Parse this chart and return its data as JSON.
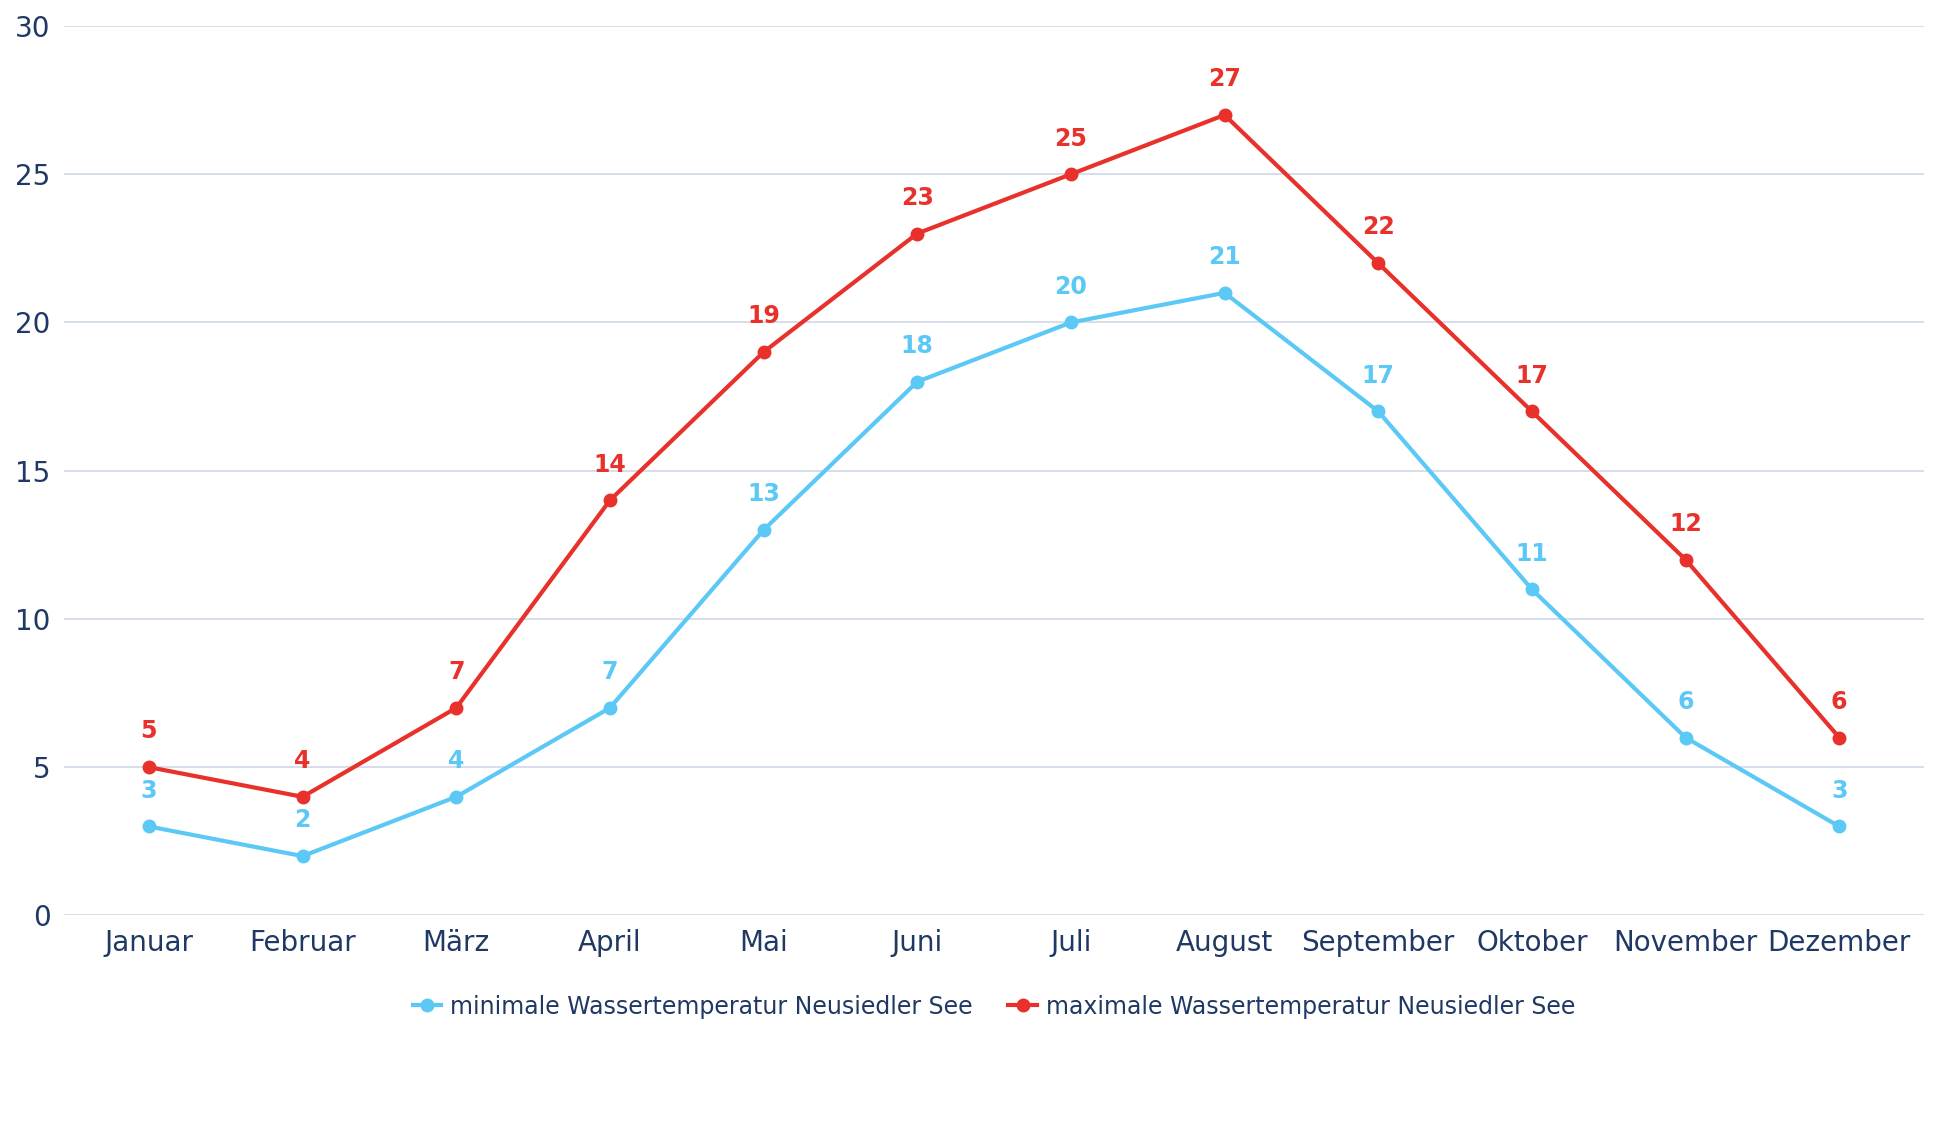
{
  "months": [
    "Januar",
    "Februar",
    "März",
    "April",
    "Mai",
    "Juni",
    "Juli",
    "August",
    "September",
    "Oktober",
    "November",
    "Dezember"
  ],
  "min_temps": [
    3,
    2,
    4,
    7,
    13,
    18,
    20,
    21,
    17,
    11,
    6,
    3
  ],
  "max_temps": [
    5,
    4,
    7,
    14,
    19,
    23,
    25,
    27,
    22,
    17,
    12,
    6
  ],
  "min_color": "#5bc8f5",
  "max_color": "#e8312a",
  "axis_text_color": "#1f3864",
  "legend_label_min": "minimale Wassertemperatur Neusiedler See",
  "legend_label_max": "maximale Wassertemperatur Neusiedler See",
  "ylim": [
    0,
    30
  ],
  "yticks": [
    0,
    5,
    10,
    15,
    20,
    25,
    30
  ],
  "line_width": 3.0,
  "marker_size": 9,
  "background_color": "#ffffff",
  "grid_color": "#d0d8e8",
  "tick_fontsize": 20,
  "label_fontsize": 17,
  "legend_fontsize": 17
}
